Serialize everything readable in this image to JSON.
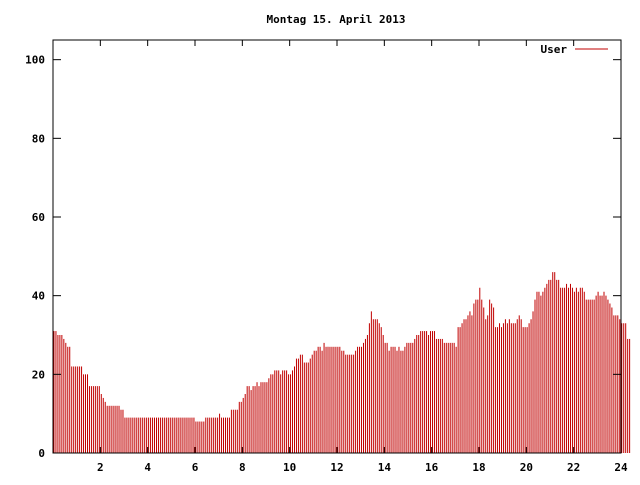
{
  "chart_data": {
    "type": "bar",
    "title": "Montag 15. April 2013",
    "xlabel": "",
    "ylabel": "",
    "xlim": [
      0,
      24
    ],
    "ylim": [
      0,
      105
    ],
    "x_ticks": [
      "2",
      "4",
      "6",
      "8",
      "10",
      "12",
      "14",
      "16",
      "18",
      "20",
      "22",
      "24"
    ],
    "y_ticks": [
      "0",
      "20",
      "40",
      "60",
      "80",
      "100"
    ],
    "legend_position": "top-right",
    "grid": false,
    "series": [
      {
        "name": "User",
        "color": "#c00000",
        "step_hours": 0.0833,
        "values": [
          31,
          31,
          30,
          30,
          30,
          29,
          28,
          27,
          27,
          22,
          22,
          22,
          22,
          22,
          22,
          20,
          20,
          20,
          17,
          17,
          17,
          17,
          17,
          17,
          15,
          14,
          13,
          12,
          12,
          12,
          12,
          12,
          12,
          12,
          11,
          11,
          9,
          9,
          9,
          9,
          9,
          9,
          9,
          9,
          9,
          9,
          9,
          9,
          9,
          9,
          9,
          9,
          9,
          9,
          9,
          9,
          9,
          9,
          9,
          9,
          9,
          9,
          9,
          9,
          9,
          9,
          9,
          9,
          9,
          9,
          9,
          9,
          8,
          8,
          8,
          8,
          8,
          9,
          9,
          9,
          9,
          9,
          9,
          9,
          10,
          9,
          9,
          9,
          9,
          9,
          11,
          11,
          11,
          11,
          13,
          13,
          14,
          15,
          17,
          17,
          16,
          17,
          17,
          18,
          17,
          18,
          18,
          18,
          18,
          19,
          20,
          20,
          21,
          21,
          21,
          20,
          21,
          21,
          21,
          20,
          20,
          21,
          22,
          24,
          24,
          25,
          25,
          23,
          23,
          23,
          24,
          25,
          26,
          26,
          27,
          27,
          26,
          28,
          27,
          27,
          27,
          27,
          27,
          27,
          27,
          27,
          26,
          26,
          25,
          25,
          25,
          25,
          25,
          26,
          27,
          27,
          27,
          28,
          29,
          30,
          33,
          36,
          34,
          34,
          34,
          33,
          32,
          30,
          28,
          28,
          26,
          27,
          27,
          27,
          26,
          27,
          26,
          26,
          27,
          28,
          28,
          28,
          28,
          29,
          30,
          30,
          31,
          31,
          31,
          31,
          30,
          31,
          31,
          31,
          29,
          29,
          29,
          29,
          28,
          28,
          28,
          28,
          28,
          28,
          27,
          32,
          32,
          33,
          34,
          34,
          35,
          36,
          35,
          38,
          39,
          39,
          42,
          39,
          37,
          34,
          35,
          39,
          38,
          37,
          32,
          32,
          33,
          32,
          33,
          34,
          33,
          34,
          33,
          33,
          33,
          34,
          35,
          34,
          32,
          32,
          32,
          33,
          34,
          36,
          39,
          41,
          41,
          40,
          41,
          42,
          43,
          44,
          44,
          46,
          46,
          44,
          44,
          42,
          42,
          42,
          43,
          42,
          43,
          42,
          41,
          42,
          41,
          42,
          42,
          41,
          39,
          39,
          39,
          39,
          39,
          40,
          41,
          40,
          40,
          41,
          40,
          39,
          38,
          37,
          35,
          35,
          35,
          34,
          33,
          33,
          33,
          29,
          29
        ]
      }
    ]
  }
}
